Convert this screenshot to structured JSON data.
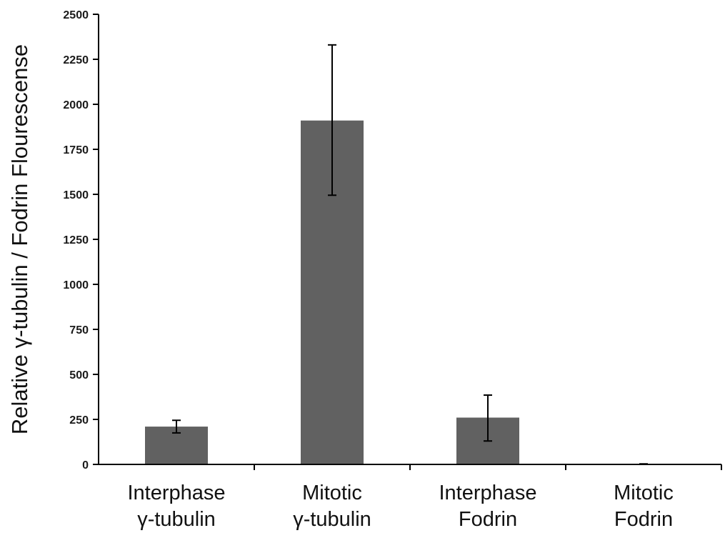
{
  "chart_data": {
    "type": "bar",
    "title": "",
    "xlabel": "",
    "ylabel": "Relative γ-tubulin / Fodrin Flourescense",
    "ylim": [
      0,
      2500
    ],
    "yticks": [
      "0",
      "250",
      "500",
      "750",
      "1000",
      "1250",
      "1500",
      "1750",
      "2000",
      "2250",
      "2500"
    ],
    "grid": false,
    "legend": "none",
    "categories": [
      [
        "Interphase",
        "γ-tubulin"
      ],
      [
        "Mitotic",
        "γ-tubulin"
      ],
      [
        "Interphase",
        "Fodrin"
      ],
      [
        "Mitotic",
        "Fodrin"
      ]
    ],
    "series": [
      {
        "values": [
          210,
          1910,
          260,
          3
        ],
        "error_low": [
          175,
          1495,
          130,
          3
        ],
        "error_high": [
          245,
          2330,
          385,
          3
        ],
        "color": "#616161"
      }
    ]
  }
}
